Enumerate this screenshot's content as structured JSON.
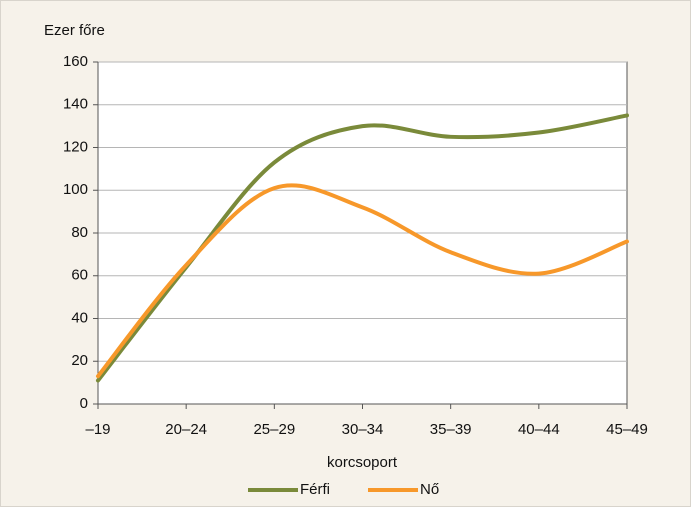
{
  "chart_data": {
    "type": "line",
    "y_axis_label": "Ezer főre",
    "x_axis_label": "korcsoport",
    "categories": [
      "–19",
      "20–24",
      "25–29",
      "30–34",
      "35–39",
      "40–44",
      "45–49"
    ],
    "series": [
      {
        "name": "Férfi",
        "color": "#7a8a3a",
        "values": [
          11,
          64,
          113,
          130,
          125,
          127,
          135
        ]
      },
      {
        "name": "Nő",
        "color": "#f7982a",
        "values": [
          13,
          65,
          101,
          92,
          71,
          61,
          76
        ]
      }
    ],
    "ylim": [
      0,
      160
    ],
    "yticks": [
      0,
      20,
      40,
      60,
      80,
      100,
      120,
      140,
      160
    ],
    "grid": true,
    "smooth": true,
    "legend": "bottom"
  }
}
